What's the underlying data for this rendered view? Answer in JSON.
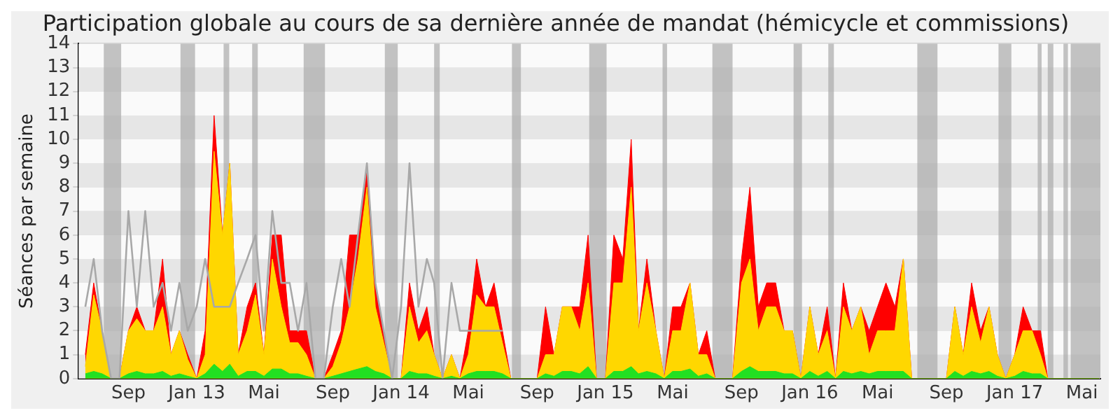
{
  "chart_data": {
    "type": "area",
    "title": "Participation globale au cours de sa dernière année de mandat (hémicycle et commissions)",
    "ylabel": "Séances par semaine",
    "x": [
      "2012-06-16",
      "2012-07-01",
      "2012-07-16",
      "2012-08-01",
      "2012-08-16",
      "2012-09-01",
      "2012-09-16",
      "2012-10-01",
      "2012-10-16",
      "2012-11-01",
      "2012-11-16",
      "2012-12-01",
      "2012-12-16",
      "2013-01-01",
      "2013-01-16",
      "2013-02-01",
      "2013-02-16",
      "2013-03-01",
      "2013-03-16",
      "2013-04-01",
      "2013-04-16",
      "2013-05-01",
      "2013-05-16",
      "2013-06-01",
      "2013-06-16",
      "2013-07-01",
      "2013-07-16",
      "2013-08-01",
      "2013-08-16",
      "2013-09-01",
      "2013-09-16",
      "2013-10-01",
      "2013-10-16",
      "2013-11-01",
      "2013-11-16",
      "2013-12-01",
      "2013-12-16",
      "2014-01-01",
      "2014-01-16",
      "2014-02-01",
      "2014-02-16",
      "2014-03-01",
      "2014-03-16",
      "2014-04-01",
      "2014-04-16",
      "2014-05-01",
      "2014-05-16",
      "2014-06-01",
      "2014-06-16",
      "2014-07-01",
      "2014-07-16",
      "2014-08-01",
      "2014-08-16",
      "2014-09-01",
      "2014-09-16",
      "2014-10-01",
      "2014-10-16",
      "2014-11-01",
      "2014-11-16",
      "2014-12-01",
      "2014-12-16",
      "2015-01-01",
      "2015-01-16",
      "2015-02-01",
      "2015-02-16",
      "2015-03-01",
      "2015-03-16",
      "2015-04-01",
      "2015-04-16",
      "2015-05-01",
      "2015-05-16",
      "2015-06-01",
      "2015-06-16",
      "2015-07-01",
      "2015-07-16",
      "2015-08-01",
      "2015-08-16",
      "2015-09-01",
      "2015-09-16",
      "2015-10-01",
      "2015-10-16",
      "2015-11-01",
      "2015-11-16",
      "2015-12-01",
      "2015-12-16",
      "2016-01-01",
      "2016-01-16",
      "2016-02-01",
      "2016-02-16",
      "2016-03-01",
      "2016-03-16",
      "2016-04-01",
      "2016-04-16",
      "2016-05-01",
      "2016-05-16",
      "2016-06-01",
      "2016-06-16",
      "2016-07-01",
      "2016-07-16",
      "2016-08-01",
      "2016-08-16",
      "2016-09-01",
      "2016-09-16",
      "2016-10-01",
      "2016-10-16",
      "2016-11-01",
      "2016-11-16",
      "2016-12-01",
      "2016-12-16",
      "2017-01-01",
      "2017-01-16",
      "2017-02-01",
      "2017-02-16",
      "2017-03-01",
      "2017-03-16",
      "2017-04-01",
      "2017-04-16",
      "2017-05-01",
      "2017-05-16",
      "2017-06-01"
    ],
    "series": [
      {
        "type": "area",
        "color": "#ff0000",
        "values": [
          1,
          4,
          2,
          0,
          0,
          2,
          3,
          2,
          2,
          5,
          1,
          2,
          1,
          0,
          2,
          11,
          6,
          9,
          1,
          3,
          4,
          1,
          6,
          6,
          2,
          2,
          2,
          0,
          0,
          1,
          2,
          6,
          6,
          9,
          4,
          2,
          0,
          0,
          4,
          2,
          3,
          1,
          0,
          1,
          0,
          2,
          5,
          3,
          4,
          2,
          0,
          0,
          0,
          0,
          3,
          1,
          3,
          3,
          3,
          6,
          0,
          0,
          6,
          5,
          10,
          2,
          5,
          2,
          0,
          3,
          3,
          4,
          1,
          2,
          0,
          0,
          0,
          5,
          8,
          3,
          4,
          4,
          2,
          2,
          0,
          3,
          1,
          3,
          0,
          4,
          2,
          3,
          2,
          3,
          4,
          3,
          5,
          0,
          0,
          0,
          0,
          0,
          3,
          1,
          4,
          2,
          3,
          1,
          0,
          1,
          3,
          2,
          2,
          0,
          0,
          0,
          0,
          0,
          0,
          0
        ]
      },
      {
        "type": "area",
        "color": "#ffd700",
        "values": [
          0.5,
          3.5,
          2,
          0,
          0,
          2,
          2.5,
          2,
          2,
          3,
          1,
          2,
          0.8,
          0,
          1,
          9.5,
          6,
          9,
          1,
          2,
          3.5,
          1,
          5,
          3,
          1.5,
          1.5,
          1,
          0,
          0,
          0.5,
          1.5,
          3,
          5,
          8,
          3,
          1.5,
          0,
          0,
          3,
          1.5,
          2,
          1,
          0,
          1,
          0,
          1,
          3.5,
          3,
          3,
          1.5,
          0,
          0,
          0,
          0,
          1,
          1,
          3,
          3,
          2,
          4,
          0,
          0,
          4,
          4,
          8,
          2,
          4,
          2,
          0,
          2,
          2,
          4,
          1,
          1,
          0,
          0,
          0,
          4,
          5,
          2,
          3,
          3,
          2,
          2,
          0,
          3,
          1,
          2,
          0,
          3,
          2,
          3,
          1,
          2,
          2,
          2,
          5,
          0,
          0,
          0,
          0,
          0,
          3,
          1,
          3,
          1.5,
          3,
          1,
          0,
          1,
          2,
          2,
          1,
          0,
          0,
          0,
          0,
          0,
          0,
          0
        ]
      },
      {
        "type": "area",
        "color": "#22e022",
        "values": [
          0.2,
          0.3,
          0.2,
          0,
          0,
          0.2,
          0.3,
          0.2,
          0.2,
          0.3,
          0.1,
          0.2,
          0.1,
          0,
          0.2,
          0.6,
          0.3,
          0.6,
          0.1,
          0.3,
          0.3,
          0.1,
          0.4,
          0.4,
          0.2,
          0.2,
          0.1,
          0,
          0,
          0.1,
          0.2,
          0.3,
          0.4,
          0.5,
          0.3,
          0.2,
          0,
          0,
          0.3,
          0.2,
          0.2,
          0.1,
          0,
          0.1,
          0,
          0.2,
          0.3,
          0.3,
          0.3,
          0.2,
          0,
          0,
          0,
          0,
          0.2,
          0.1,
          0.3,
          0.3,
          0.2,
          0.5,
          0,
          0,
          0.3,
          0.3,
          0.5,
          0.2,
          0.3,
          0.2,
          0,
          0.3,
          0.3,
          0.4,
          0.1,
          0.2,
          0,
          0,
          0,
          0.3,
          0.5,
          0.3,
          0.3,
          0.3,
          0.2,
          0.2,
          0,
          0.3,
          0.1,
          0.3,
          0,
          0.3,
          0.2,
          0.3,
          0.2,
          0.3,
          0.3,
          0.3,
          0.3,
          0,
          0,
          0,
          0,
          0,
          0.3,
          0.1,
          0.3,
          0.2,
          0.3,
          0.1,
          0,
          0.1,
          0.3,
          0.2,
          0.2,
          0,
          0,
          0,
          0,
          0,
          0,
          0
        ]
      },
      {
        "type": "line",
        "color": "#a8a8a8",
        "values": [
          3,
          5,
          2,
          0,
          0,
          7,
          3,
          7,
          3,
          4,
          2,
          4,
          2,
          3,
          5,
          3,
          3,
          3,
          4,
          5,
          6,
          2,
          7,
          4,
          4,
          2,
          4,
          0,
          0,
          3,
          5,
          3,
          6,
          9,
          4,
          2,
          0,
          3,
          9,
          3,
          5,
          4,
          0,
          4,
          2,
          2,
          2,
          2,
          2,
          2,
          null,
          null,
          null,
          null,
          null,
          null,
          null,
          null,
          null,
          null,
          null,
          null,
          null,
          null,
          null,
          null,
          null,
          null,
          null,
          null,
          null,
          null,
          null,
          null,
          null,
          null,
          null,
          null,
          null,
          null,
          null,
          null,
          null,
          null,
          null,
          null,
          null,
          null,
          null,
          null,
          null,
          null,
          null,
          null,
          null,
          null,
          null,
          null,
          null,
          null,
          null,
          null,
          null,
          null,
          null,
          null,
          null,
          null,
          null,
          null,
          null,
          null,
          null,
          null,
          null,
          null,
          null,
          null,
          null,
          null
        ]
      }
    ],
    "xlim": [
      "2012-06-04",
      "2017-06-03"
    ],
    "xticks": [
      {
        "value": "2012-09-01",
        "label": "Sep"
      },
      {
        "value": "2013-01-01",
        "label": "Jan 13"
      },
      {
        "value": "2013-05-01",
        "label": "Mai"
      },
      {
        "value": "2013-09-01",
        "label": "Sep"
      },
      {
        "value": "2014-01-01",
        "label": "Jan 14"
      },
      {
        "value": "2014-05-01",
        "label": "Mai"
      },
      {
        "value": "2014-09-01",
        "label": "Sep"
      },
      {
        "value": "2015-01-01",
        "label": "Jan 15"
      },
      {
        "value": "2015-05-01",
        "label": "Mai"
      },
      {
        "value": "2015-09-01",
        "label": "Sep"
      },
      {
        "value": "2016-01-01",
        "label": "Jan 16"
      },
      {
        "value": "2016-05-01",
        "label": "Mai"
      },
      {
        "value": "2016-09-01",
        "label": "Sep"
      },
      {
        "value": "2017-01-01",
        "label": "Jan 17"
      },
      {
        "value": "2017-05-01",
        "label": "Mai"
      }
    ],
    "ylim": [
      0,
      14
    ],
    "yticks": [
      0,
      1,
      2,
      3,
      4,
      5,
      6,
      7,
      8,
      9,
      10,
      11,
      12,
      13,
      14
    ],
    "grid": "y",
    "marker": "none",
    "bands": [
      {
        "axis": "x",
        "from": "2012-07-19",
        "to": "2012-08-19",
        "color": "#aaaaaa"
      },
      {
        "axis": "x",
        "from": "2012-12-03",
        "to": "2012-12-29",
        "color": "#aaaaaa"
      },
      {
        "axis": "x",
        "from": "2013-02-18",
        "to": "2013-02-28",
        "color": "#aaaaaa"
      },
      {
        "axis": "x",
        "from": "2013-04-10",
        "to": "2013-04-20",
        "color": "#aaaaaa"
      },
      {
        "axis": "x",
        "from": "2013-07-11",
        "to": "2013-08-18",
        "color": "#aaaaaa"
      },
      {
        "axis": "x",
        "from": "2013-12-03",
        "to": "2013-12-26",
        "color": "#aaaaaa"
      },
      {
        "axis": "x",
        "from": "2014-03-01",
        "to": "2014-03-11",
        "color": "#aaaaaa"
      },
      {
        "axis": "x",
        "from": "2014-07-18",
        "to": "2014-08-03",
        "color": "#aaaaaa"
      },
      {
        "axis": "x",
        "from": "2014-12-03",
        "to": "2015-01-03",
        "color": "#aaaaaa"
      },
      {
        "axis": "x",
        "from": "2015-04-13",
        "to": "2015-04-21",
        "color": "#aaaaaa"
      },
      {
        "axis": "x",
        "from": "2015-07-11",
        "to": "2015-08-16",
        "color": "#aaaaaa"
      },
      {
        "axis": "x",
        "from": "2015-12-03",
        "to": "2015-12-18",
        "color": "#aaaaaa"
      },
      {
        "axis": "x",
        "from": "2016-02-03",
        "to": "2016-02-13",
        "color": "#aaaaaa"
      },
      {
        "axis": "x",
        "from": "2016-07-11",
        "to": "2016-08-16",
        "color": "#aaaaaa"
      },
      {
        "axis": "x",
        "from": "2016-12-03",
        "to": "2016-12-26",
        "color": "#aaaaaa"
      },
      {
        "axis": "x",
        "from": "2017-02-11",
        "to": "2017-02-18",
        "color": "#aaaaaa"
      },
      {
        "axis": "x",
        "from": "2017-03-01",
        "to": "2017-03-11",
        "color": "#aaaaaa"
      },
      {
        "axis": "x",
        "from": "2017-03-29",
        "to": "2017-04-06",
        "color": "#aaaaaa"
      },
      {
        "axis": "x",
        "from": "2017-04-11",
        "to": "2017-06-03",
        "color": "#aaaaaa"
      }
    ]
  }
}
